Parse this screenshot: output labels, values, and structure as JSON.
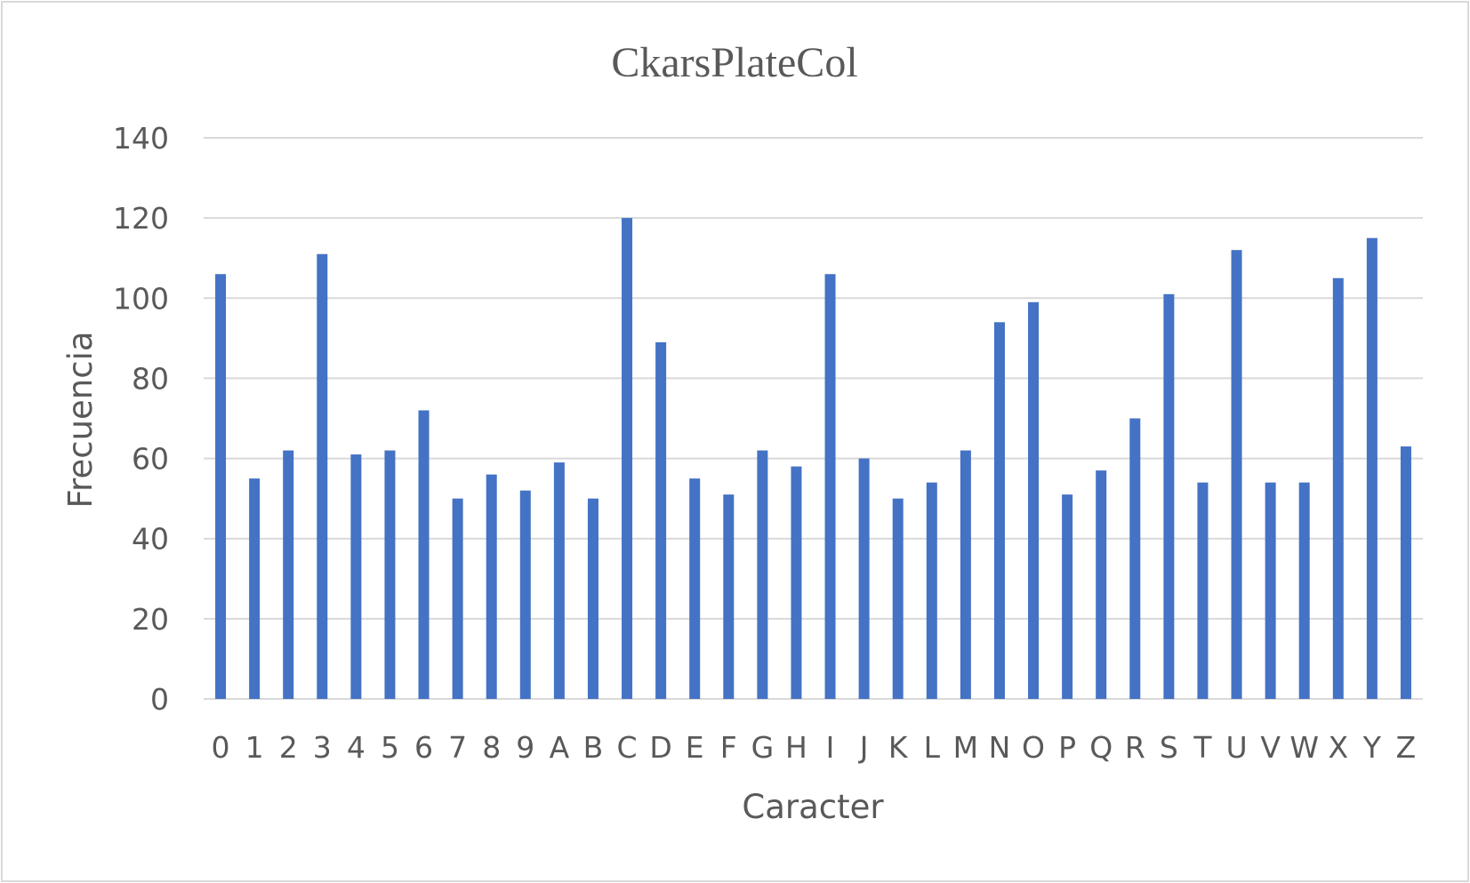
{
  "chart_data": {
    "type": "bar",
    "title": "CkarsPlateCol",
    "xlabel": "Caracter",
    "ylabel": "Frecuencia",
    "ylim": [
      0,
      140
    ],
    "yticks": [
      "0",
      "20",
      "40",
      "60",
      "80",
      "100",
      "120",
      "140"
    ],
    "grid": true,
    "legend": "none",
    "bar_color": "#4472c4",
    "gridline_color": "#d9d9d9",
    "categories": [
      "0",
      "1",
      "2",
      "3",
      "4",
      "5",
      "6",
      "7",
      "8",
      "9",
      "A",
      "B",
      "C",
      "D",
      "E",
      "F",
      "G",
      "H",
      "I",
      "J",
      "K",
      "L",
      "M",
      "N",
      "O",
      "P",
      "Q",
      "R",
      "S",
      "T",
      "U",
      "V",
      "W",
      "X",
      "Y",
      "Z"
    ],
    "values": [
      106,
      55,
      62,
      111,
      61,
      62,
      72,
      50,
      56,
      52,
      59,
      50,
      120,
      89,
      55,
      51,
      62,
      58,
      106,
      60,
      50,
      54,
      62,
      94,
      99,
      51,
      57,
      70,
      101,
      54,
      112,
      54,
      54,
      105,
      115,
      63
    ]
  }
}
